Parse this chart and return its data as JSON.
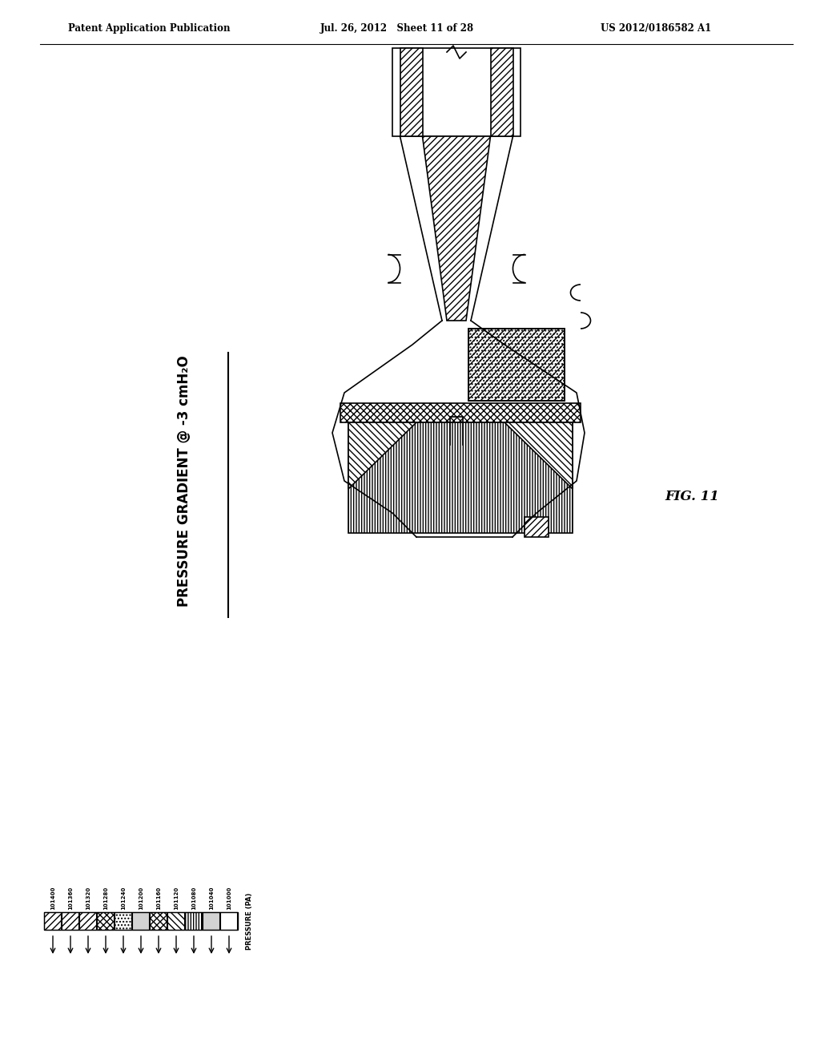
{
  "title": "PRESSURE GRADIENT @ -3 cmH₂O",
  "fig_label": "FIG. 11",
  "header_left": "Patent Application Publication",
  "header_mid": "Jul. 26, 2012   Sheet 11 of 28",
  "header_right": "US 2012/0186582 A1",
  "legend_labels": [
    "101400",
    "101360",
    "101320",
    "101280",
    "101240",
    "101200",
    "101160",
    "101120",
    "101080",
    "101040",
    "101000"
  ],
  "legend_title": "PRESSURE (PA)",
  "background": "#ffffff",
  "line_color": "#000000"
}
